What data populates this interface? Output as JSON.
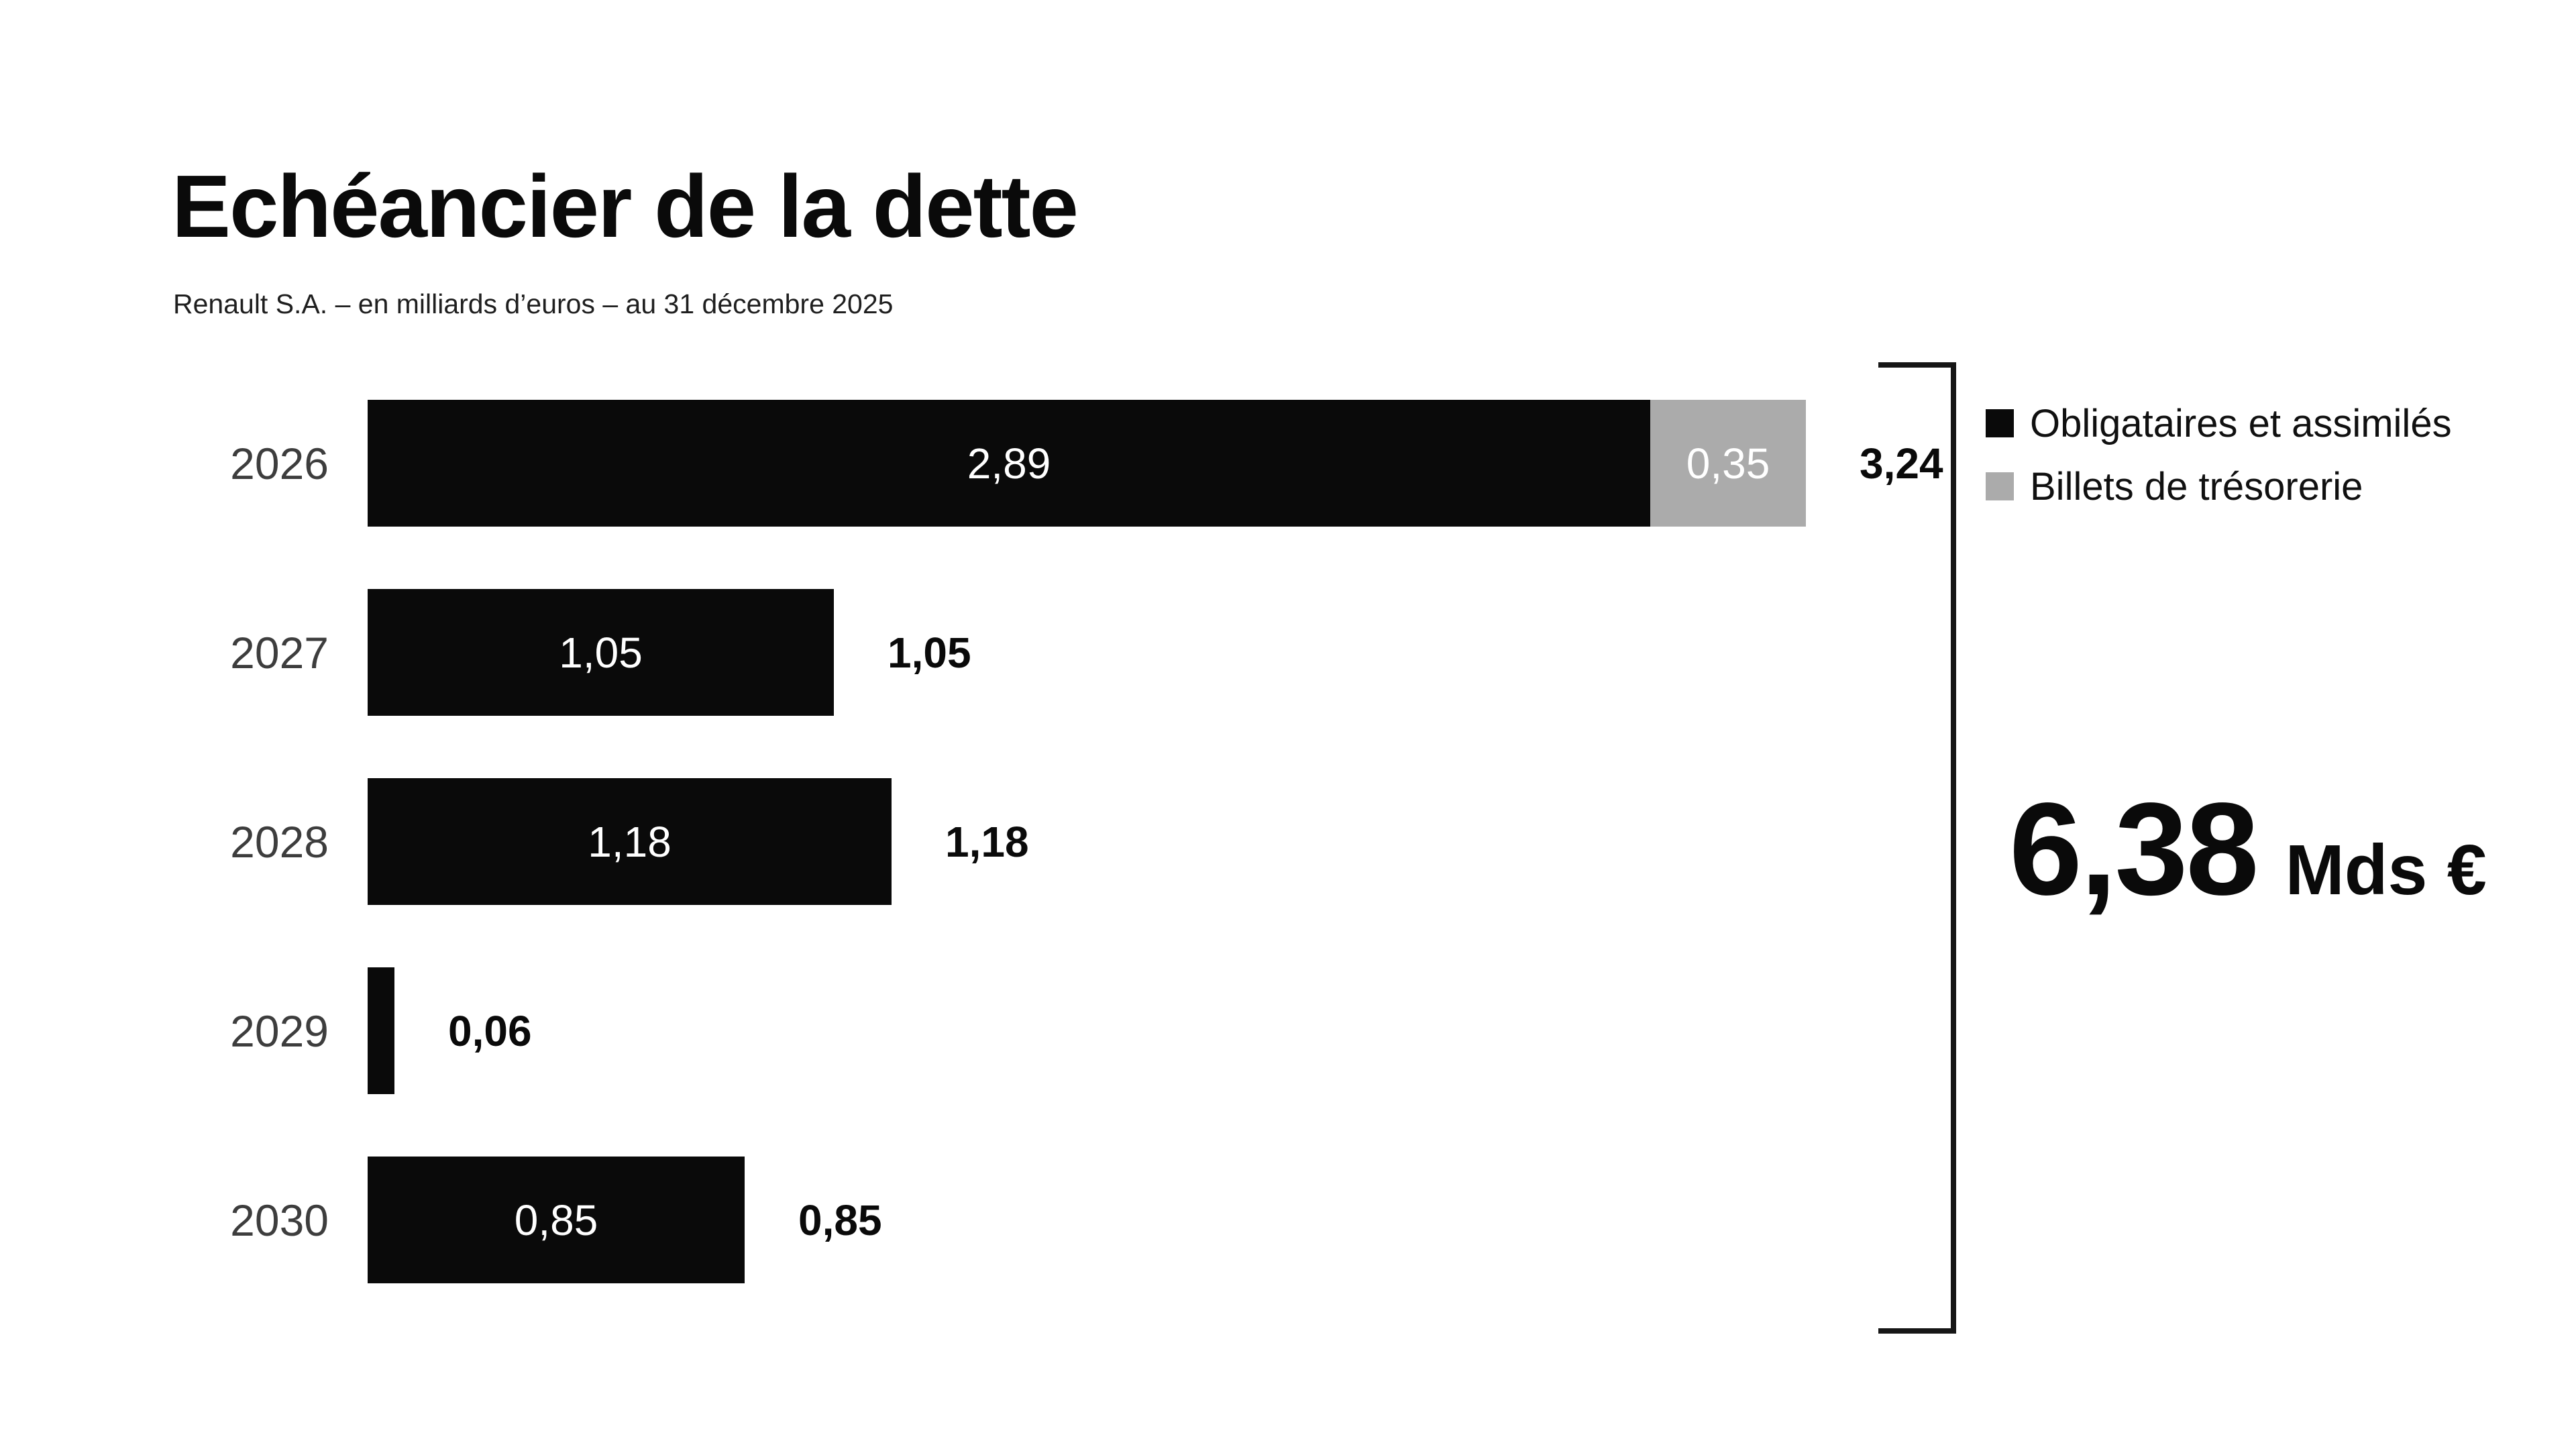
{
  "title": "Echéancier de la dette",
  "subtitle": "Renault S.A. – en milliards d’euros – au 31 décembre 2025",
  "colors": {
    "bond": "#0a0a0a",
    "commercial_paper": "#ababab",
    "bracket": "#161616",
    "year_label": "#3d3d3d"
  },
  "legend": [
    {
      "label": "Obligataires et assimilés",
      "color": "#0a0a0a"
    },
    {
      "label": "Billets de trésorerie",
      "color": "#ababab"
    }
  ],
  "grand_total": {
    "value": "6,38",
    "unit": "Mds €"
  },
  "rows": [
    {
      "year": "2026",
      "bond_label": "2,89",
      "cp_label": "0,35",
      "total_label": "3,24"
    },
    {
      "year": "2027",
      "bond_label": "1,05",
      "cp_label": "",
      "total_label": "1,05"
    },
    {
      "year": "2028",
      "bond_label": "1,18",
      "cp_label": "",
      "total_label": "1,18"
    },
    {
      "year": "2029",
      "bond_label": "",
      "cp_label": "",
      "total_label": "0,06"
    },
    {
      "year": "2030",
      "bond_label": "0,85",
      "cp_label": "",
      "total_label": "0,85"
    }
  ],
  "chart_data": {
    "type": "bar",
    "orientation": "horizontal",
    "stacked": true,
    "title": "Echéancier de la dette",
    "subtitle": "Renault S.A. – en milliards d’euros – au 31 décembre 2025",
    "unit": "milliards d'euros",
    "categories": [
      "2026",
      "2027",
      "2028",
      "2029",
      "2030"
    ],
    "series": [
      {
        "name": "Obligataires et assimilés",
        "color": "#0a0a0a",
        "values": [
          2.89,
          1.05,
          1.18,
          0.06,
          0.85
        ]
      },
      {
        "name": "Billets de trésorerie",
        "color": "#ababab",
        "values": [
          0.35,
          0,
          0,
          0,
          0
        ]
      }
    ],
    "totals": [
      3.24,
      1.05,
      1.18,
      0.06,
      0.85
    ],
    "grand_total": 6.38,
    "grand_total_label": "6,38 Mds €",
    "legend_position": "right",
    "grid": false,
    "value_labels": "inside-white-and-total-bold-right"
  }
}
